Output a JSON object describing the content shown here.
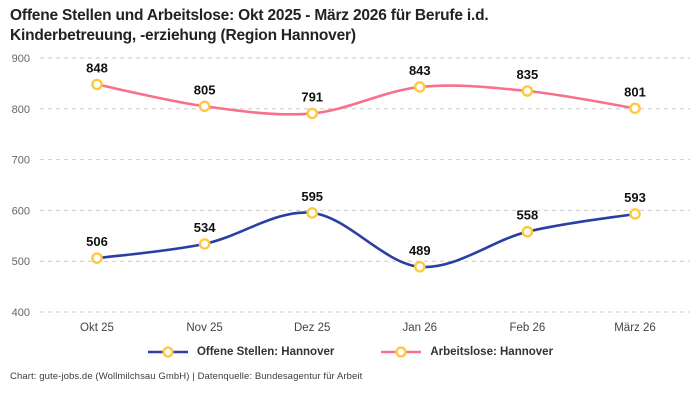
{
  "title_lines": [
    "Offene Stellen und Arbeitslose: Okt 2025 - März 2026 für Berufe i.d.",
    "Kinderbetreuung, -erziehung (Region Hannover)"
  ],
  "footer": "Chart: gute-jobs.de (Wollmilchsau GmbH) | Datenquelle: Bundesagentur für Arbeit",
  "colors": {
    "offene_stellen_line": "#2A3FA5",
    "arbeitslose_line": "#F9708A",
    "marker_stroke": "#FFC93F",
    "marker_fill": "#FFFFFF",
    "gridline": "#CBCBCB"
  },
  "chart_data": {
    "type": "line",
    "title": "Offene Stellen und Arbeitslose: Okt 2025 - März 2026 für Berufe i.d. Kinderbetreuung, -erziehung (Region Hannover)",
    "categories": [
      "Okt 25",
      "Nov 25",
      "Dez 25",
      "Jan 26",
      "Feb 26",
      "März 26"
    ],
    "series": [
      {
        "name": "Offene Stellen: Hannover",
        "values": [
          506,
          534,
          595,
          489,
          558,
          593
        ],
        "color": "#2A3FA5"
      },
      {
        "name": "Arbeitslose: Hannover",
        "values": [
          848,
          805,
          791,
          843,
          835,
          801
        ],
        "color": "#F9708A"
      }
    ],
    "xlabel": "",
    "ylabel": "",
    "ylim": [
      400,
      900
    ],
    "yticks": [
      400,
      500,
      600,
      700,
      800,
      900
    ],
    "grid": "horizontal-dashed",
    "legend_position": "bottom",
    "markers": "open-circle-yellow",
    "data_labels": "above-points"
  }
}
